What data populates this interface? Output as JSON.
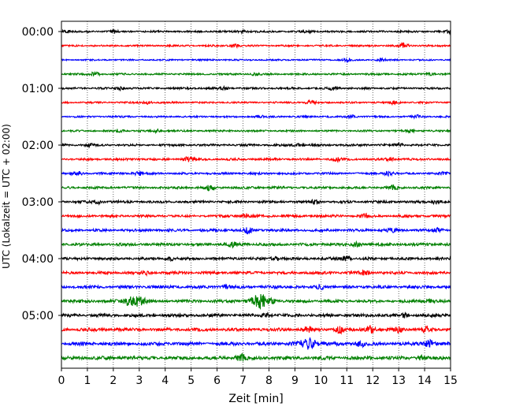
{
  "chart_data": {
    "type": "line",
    "subtype": "helicorder",
    "xlabel": "Zeit  [min]",
    "ylabel": "UTC (Lokalzeit = UTC + 02:00)",
    "xlim": [
      0,
      15
    ],
    "x_ticks": [
      0,
      1,
      2,
      3,
      4,
      5,
      6,
      7,
      8,
      9,
      10,
      11,
      12,
      13,
      14,
      15
    ],
    "y_tick_labels": [
      "00:00",
      "01:00",
      "02:00",
      "03:00",
      "04:00",
      "05:00"
    ],
    "minutes_per_line": 15,
    "line_count": 24,
    "trace_colors": [
      "#000000",
      "#ff0000",
      "#0000ff",
      "#008000"
    ],
    "grid": "vertical dotted lines at each minute",
    "traces": [
      {
        "start": "00:00",
        "noise_level": 0.3,
        "events": [
          {
            "minute": 0.2,
            "amplitude": 0.5
          },
          {
            "minute": 2.0,
            "amplitude": 0.5
          },
          {
            "minute": 7.0,
            "amplitude": 0.5
          },
          {
            "minute": 9.5,
            "amplitude": 0.5
          },
          {
            "minute": 15.0,
            "amplitude": 0.5
          }
        ]
      },
      {
        "start": "00:15",
        "noise_level": 0.28,
        "events": [
          {
            "minute": 13.2,
            "amplitude": 0.9
          },
          {
            "minute": 6.7,
            "amplitude": 0.5
          }
        ]
      },
      {
        "start": "00:30",
        "noise_level": 0.25,
        "events": [
          {
            "minute": 11.0,
            "amplitude": 0.5
          },
          {
            "minute": 12.3,
            "amplitude": 0.5
          }
        ]
      },
      {
        "start": "00:45",
        "noise_level": 0.3,
        "events": [
          {
            "minute": 1.3,
            "amplitude": 0.7
          },
          {
            "minute": 7.5,
            "amplitude": 0.5
          },
          {
            "minute": 14.2,
            "amplitude": 0.5
          }
        ]
      },
      {
        "start": "01:00",
        "noise_level": 0.32,
        "events": [
          {
            "minute": 2.3,
            "amplitude": 0.6
          },
          {
            "minute": 6.2,
            "amplitude": 0.6
          },
          {
            "minute": 10.5,
            "amplitude": 0.6
          }
        ]
      },
      {
        "start": "01:15",
        "noise_level": 0.28,
        "events": [
          {
            "minute": 3.3,
            "amplitude": 0.6
          },
          {
            "minute": 9.6,
            "amplitude": 0.7
          },
          {
            "minute": 12.8,
            "amplitude": 0.5
          }
        ]
      },
      {
        "start": "01:30",
        "noise_level": 0.28,
        "events": [
          {
            "minute": 7.6,
            "amplitude": 0.5
          },
          {
            "minute": 11.2,
            "amplitude": 0.5
          },
          {
            "minute": 13.7,
            "amplitude": 0.5
          }
        ]
      },
      {
        "start": "01:45",
        "noise_level": 0.3,
        "events": [
          {
            "minute": 2.2,
            "amplitude": 0.5
          },
          {
            "minute": 3.7,
            "amplitude": 0.6
          },
          {
            "minute": 13.5,
            "amplitude": 0.5
          }
        ]
      },
      {
        "start": "02:00",
        "noise_level": 0.35,
        "events": [
          {
            "minute": 1.1,
            "amplitude": 0.5
          },
          {
            "minute": 9.1,
            "amplitude": 0.6
          },
          {
            "minute": 13.0,
            "amplitude": 0.5
          }
        ]
      },
      {
        "start": "02:15",
        "noise_level": 0.35,
        "events": [
          {
            "minute": 4.9,
            "amplitude": 0.8
          },
          {
            "minute": 10.6,
            "amplitude": 0.6
          },
          {
            "minute": 12.7,
            "amplitude": 0.6
          }
        ]
      },
      {
        "start": "02:30",
        "noise_level": 0.35,
        "events": [
          {
            "minute": 0.6,
            "amplitude": 0.7
          },
          {
            "minute": 3.0,
            "amplitude": 0.8
          },
          {
            "minute": 12.6,
            "amplitude": 0.7
          },
          {
            "minute": 14.8,
            "amplitude": 0.5
          }
        ]
      },
      {
        "start": "02:45",
        "noise_level": 0.38,
        "events": [
          {
            "minute": 5.7,
            "amplitude": 1.0
          },
          {
            "minute": 12.8,
            "amplitude": 0.6
          }
        ]
      },
      {
        "start": "03:00",
        "noise_level": 0.4,
        "events": [
          {
            "minute": 1.4,
            "amplitude": 0.7
          },
          {
            "minute": 9.8,
            "amplitude": 0.7
          },
          {
            "minute": 14.4,
            "amplitude": 0.6
          }
        ]
      },
      {
        "start": "03:15",
        "noise_level": 0.4,
        "events": [
          {
            "minute": 7.1,
            "amplitude": 0.7
          },
          {
            "minute": 11.7,
            "amplitude": 0.6
          }
        ]
      },
      {
        "start": "03:30",
        "noise_level": 0.42,
        "events": [
          {
            "minute": 7.2,
            "amplitude": 0.9
          },
          {
            "minute": 12.7,
            "amplitude": 0.6
          },
          {
            "minute": 14.5,
            "amplitude": 0.6
          }
        ]
      },
      {
        "start": "03:45",
        "noise_level": 0.45,
        "events": [
          {
            "minute": 6.6,
            "amplitude": 0.7
          },
          {
            "minute": 11.4,
            "amplitude": 0.7
          }
        ]
      },
      {
        "start": "04:00",
        "noise_level": 0.45,
        "events": [
          {
            "minute": 4.2,
            "amplitude": 0.6
          },
          {
            "minute": 8.3,
            "amplitude": 0.6
          },
          {
            "minute": 11.0,
            "amplitude": 0.7
          }
        ]
      },
      {
        "start": "04:15",
        "noise_level": 0.45,
        "events": [
          {
            "minute": 3.2,
            "amplitude": 0.6
          },
          {
            "minute": 11.7,
            "amplitude": 0.6
          }
        ]
      },
      {
        "start": "04:30",
        "noise_level": 0.48,
        "events": [
          {
            "minute": 6.3,
            "amplitude": 0.6
          },
          {
            "minute": 10.0,
            "amplitude": 0.6
          }
        ]
      },
      {
        "start": "04:45",
        "noise_level": 0.48,
        "events": [
          {
            "minute": 2.8,
            "amplitude": 2.0
          },
          {
            "minute": 7.7,
            "amplitude": 2.6
          },
          {
            "minute": 14.2,
            "amplitude": 0.6
          }
        ]
      },
      {
        "start": "05:00",
        "noise_level": 0.48,
        "events": [
          {
            "minute": 7.9,
            "amplitude": 0.7
          },
          {
            "minute": 13.2,
            "amplitude": 0.6
          }
        ]
      },
      {
        "start": "05:15",
        "noise_level": 0.5,
        "events": [
          {
            "minute": 9.5,
            "amplitude": 1.1
          },
          {
            "minute": 10.7,
            "amplitude": 1.2
          },
          {
            "minute": 11.9,
            "amplitude": 1.2
          },
          {
            "minute": 13.0,
            "amplitude": 0.9
          },
          {
            "minute": 14.1,
            "amplitude": 1.1
          }
        ]
      },
      {
        "start": "05:30",
        "noise_level": 0.55,
        "events": [
          {
            "minute": 9.5,
            "amplitude": 1.8
          },
          {
            "minute": 11.5,
            "amplitude": 1.1
          },
          {
            "minute": 14.2,
            "amplitude": 1.5
          }
        ]
      },
      {
        "start": "05:45",
        "noise_level": 0.55,
        "events": [
          {
            "minute": 6.9,
            "amplitude": 1.3
          },
          {
            "minute": 13.9,
            "amplitude": 0.7
          }
        ]
      }
    ]
  }
}
